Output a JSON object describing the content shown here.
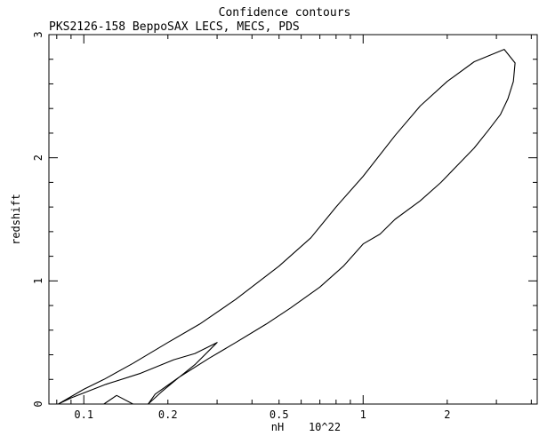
{
  "chart_data": {
    "type": "line",
    "title": "Confidence contours",
    "subtitle": "PKS2126-158 BeppoSAX LECS, MECS, PDS",
    "xlabel": "nH",
    "xunit": "10^22",
    "ylabel": "redshift",
    "xscale": "log",
    "xlim": [
      0.075,
      4.2
    ],
    "ylim": [
      0,
      3.0
    ],
    "x_tick_labels": [
      "0.1",
      "0.2",
      "0.5",
      "1",
      "2"
    ],
    "x_tick_values": [
      0.1,
      0.2,
      0.5,
      1,
      2
    ],
    "y_tick_labels": [
      "0",
      "1",
      "2",
      "3"
    ],
    "y_tick_values": [
      0,
      1,
      2,
      3
    ],
    "grid": false,
    "series": [
      {
        "x": [
          0.081,
          0.1,
          0.118,
          0.15,
          0.2,
          0.26,
          0.35,
          0.5,
          0.65,
          0.8,
          1.0,
          1.3,
          1.6,
          2.0,
          2.5,
          3.2,
          3.5,
          3.45,
          3.3,
          3.1,
          2.8,
          2.5,
          2.2,
          1.9,
          1.6,
          1.3,
          1.15,
          1.0,
          0.85,
          0.7,
          0.55,
          0.45,
          0.35,
          0.28,
          0.22,
          0.18,
          0.17,
          0.19,
          0.22,
          0.25,
          0.3,
          0.25,
          0.21,
          0.16,
          0.12,
          0.1,
          0.09,
          0.081
        ],
        "y": [
          0.0,
          0.12,
          0.2,
          0.33,
          0.5,
          0.65,
          0.85,
          1.12,
          1.35,
          1.6,
          1.85,
          2.18,
          2.42,
          2.62,
          2.78,
          2.88,
          2.77,
          2.62,
          2.48,
          2.35,
          2.22,
          2.08,
          1.95,
          1.8,
          1.65,
          1.5,
          1.38,
          1.3,
          1.12,
          0.95,
          0.78,
          0.65,
          0.5,
          0.37,
          0.22,
          0.08,
          0.0,
          0.1,
          0.22,
          0.32,
          0.5,
          0.41,
          0.36,
          0.25,
          0.16,
          0.09,
          0.05,
          0.0
        ]
      },
      {
        "x": [
          0.118,
          0.131,
          0.15
        ],
        "y": [
          0.0,
          0.07,
          0.0
        ]
      }
    ]
  }
}
